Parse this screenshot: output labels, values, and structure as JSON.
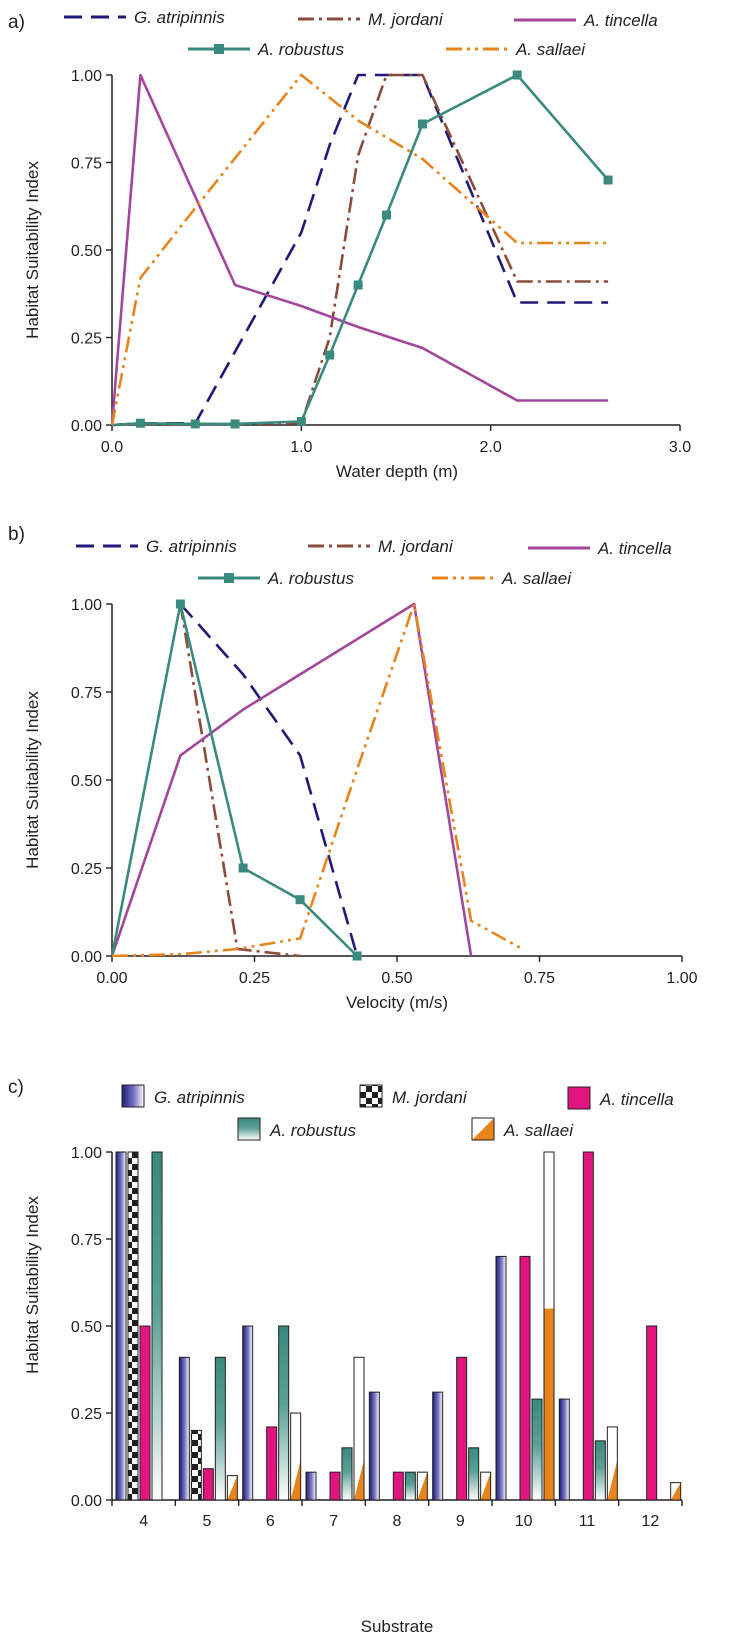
{
  "colors": {
    "G. atripinnis": "#1f1a7a",
    "M. jordani": "#8b4d3b",
    "A. tincella": "#a2479b",
    "A. robustus": "#3a8a7e",
    "A. sallaei": "#e8841c",
    "A. tincella bar": "#e0157f",
    "axis": "#231f20"
  },
  "chart_data": [
    {
      "panel": "a)",
      "type": "line",
      "xlabel": "Water depth (m)",
      "ylabel": "Habitat Suitability Index",
      "xlim": [
        0,
        3
      ],
      "ylim": [
        0,
        1
      ],
      "xticks": [
        "0.0",
        "1.0",
        "2.0",
        "3.0"
      ],
      "yticks": [
        "0.00",
        "0.25",
        "0.50",
        "0.75",
        "1.00"
      ],
      "grid": false,
      "legend": "top",
      "series": [
        {
          "name": "G. atripinnis",
          "x": [
            0,
            0.15,
            0.44,
            1.0,
            1.15,
            1.3,
            1.45,
            1.64,
            2.14,
            2.62
          ],
          "y": [
            0,
            0.005,
            0.005,
            0.55,
            0.8,
            1.0,
            1.0,
            1.0,
            0.35,
            0.35
          ]
        },
        {
          "name": "M. jordani",
          "x": [
            0,
            0.15,
            0.44,
            0.65,
            1.0,
            1.15,
            1.3,
            1.45,
            1.64,
            2.14,
            2.62
          ],
          "y": [
            0,
            0.003,
            0.003,
            0.003,
            0.005,
            0.25,
            0.77,
            1.0,
            1.0,
            0.41,
            0.41
          ]
        },
        {
          "name": "A. tincella",
          "x": [
            0,
            0.15,
            0.65,
            1.0,
            1.3,
            1.64,
            2.14,
            2.62
          ],
          "y": [
            0,
            1.0,
            0.4,
            0.34,
            0.28,
            0.22,
            0.07,
            0.07
          ]
        },
        {
          "name": "A. robustus",
          "x": [
            0,
            0.15,
            0.44,
            0.65,
            1.0,
            1.15,
            1.3,
            1.45,
            1.64,
            2.14,
            2.62
          ],
          "y": [
            0,
            0.005,
            0.003,
            0.003,
            0.01,
            0.2,
            0.4,
            0.6,
            0.86,
            1.0,
            0.7
          ]
        },
        {
          "name": "A. sallaei",
          "x": [
            0,
            0.15,
            0.44,
            1.0,
            1.3,
            1.64,
            2.14,
            2.62
          ],
          "y": [
            0,
            0.42,
            0.62,
            1.0,
            0.87,
            0.76,
            0.52,
            0.52
          ]
        }
      ]
    },
    {
      "panel": "b)",
      "type": "line",
      "xlabel": "Velocity (m/s)",
      "ylabel": "Habitat Suitability Index",
      "xlim": [
        0,
        1
      ],
      "ylim": [
        0,
        1
      ],
      "xticks": [
        "0.00",
        "0.25",
        "0.50",
        "0.75",
        "1.00"
      ],
      "yticks": [
        "0.00",
        "0.25",
        "0.50",
        "0.75",
        "1.00"
      ],
      "grid": false,
      "legend": "top",
      "series": [
        {
          "name": "G. atripinnis",
          "x": [
            0.12,
            0.23,
            0.33,
            0.43
          ],
          "y": [
            1.0,
            0.8,
            0.57,
            0.0
          ]
        },
        {
          "name": "M. jordani",
          "x": [
            0.12,
            0.22,
            0.33
          ],
          "y": [
            1.0,
            0.02,
            0.0
          ]
        },
        {
          "name": "A. tincella",
          "x": [
            0,
            0.12,
            0.23,
            0.33,
            0.53,
            0.63
          ],
          "y": [
            0,
            0.57,
            0.7,
            0.8,
            1.0,
            0.0
          ]
        },
        {
          "name": "A. robustus",
          "x": [
            0,
            0.12,
            0.23,
            0.33,
            0.43
          ],
          "y": [
            0,
            1.0,
            0.25,
            0.16,
            0.0
          ]
        },
        {
          "name": "A. sallaei",
          "x": [
            0,
            0.12,
            0.22,
            0.33,
            0.43,
            0.53,
            0.63,
            0.72
          ],
          "y": [
            0,
            0.005,
            0.02,
            0.05,
            0.53,
            1.0,
            0.1,
            0.02
          ]
        }
      ]
    },
    {
      "panel": "c)",
      "type": "bar",
      "xlabel": "Substrate",
      "ylabel": "Habitat Suitability Index",
      "ylim": [
        0,
        1
      ],
      "yticks": [
        "0.00",
        "0.25",
        "0.50",
        "0.75",
        "1.00"
      ],
      "categories": [
        "4",
        "5",
        "6",
        "7",
        "8",
        "9",
        "10",
        "11",
        "12"
      ],
      "grid": false,
      "legend": "top",
      "series": [
        {
          "name": "G. atripinnis",
          "values": [
            1.0,
            0.41,
            0.5,
            0.08,
            0.31,
            0.31,
            0.7,
            0.29,
            null
          ]
        },
        {
          "name": "M. jordani",
          "values": [
            1.0,
            0.2,
            null,
            null,
            null,
            null,
            null,
            null,
            null
          ]
        },
        {
          "name": "A. tincella",
          "values": [
            0.5,
            0.09,
            0.21,
            0.08,
            0.08,
            0.41,
            0.7,
            1.0,
            0.5
          ]
        },
        {
          "name": "A. robustus",
          "values": [
            1.0,
            0.41,
            0.5,
            0.15,
            0.08,
            0.15,
            0.29,
            0.17,
            null
          ]
        },
        {
          "name": "A. sallaei",
          "values": [
            null,
            0.07,
            0.25,
            0.41,
            0.08,
            0.08,
            1.0,
            0.21,
            0.05
          ]
        }
      ]
    }
  ]
}
